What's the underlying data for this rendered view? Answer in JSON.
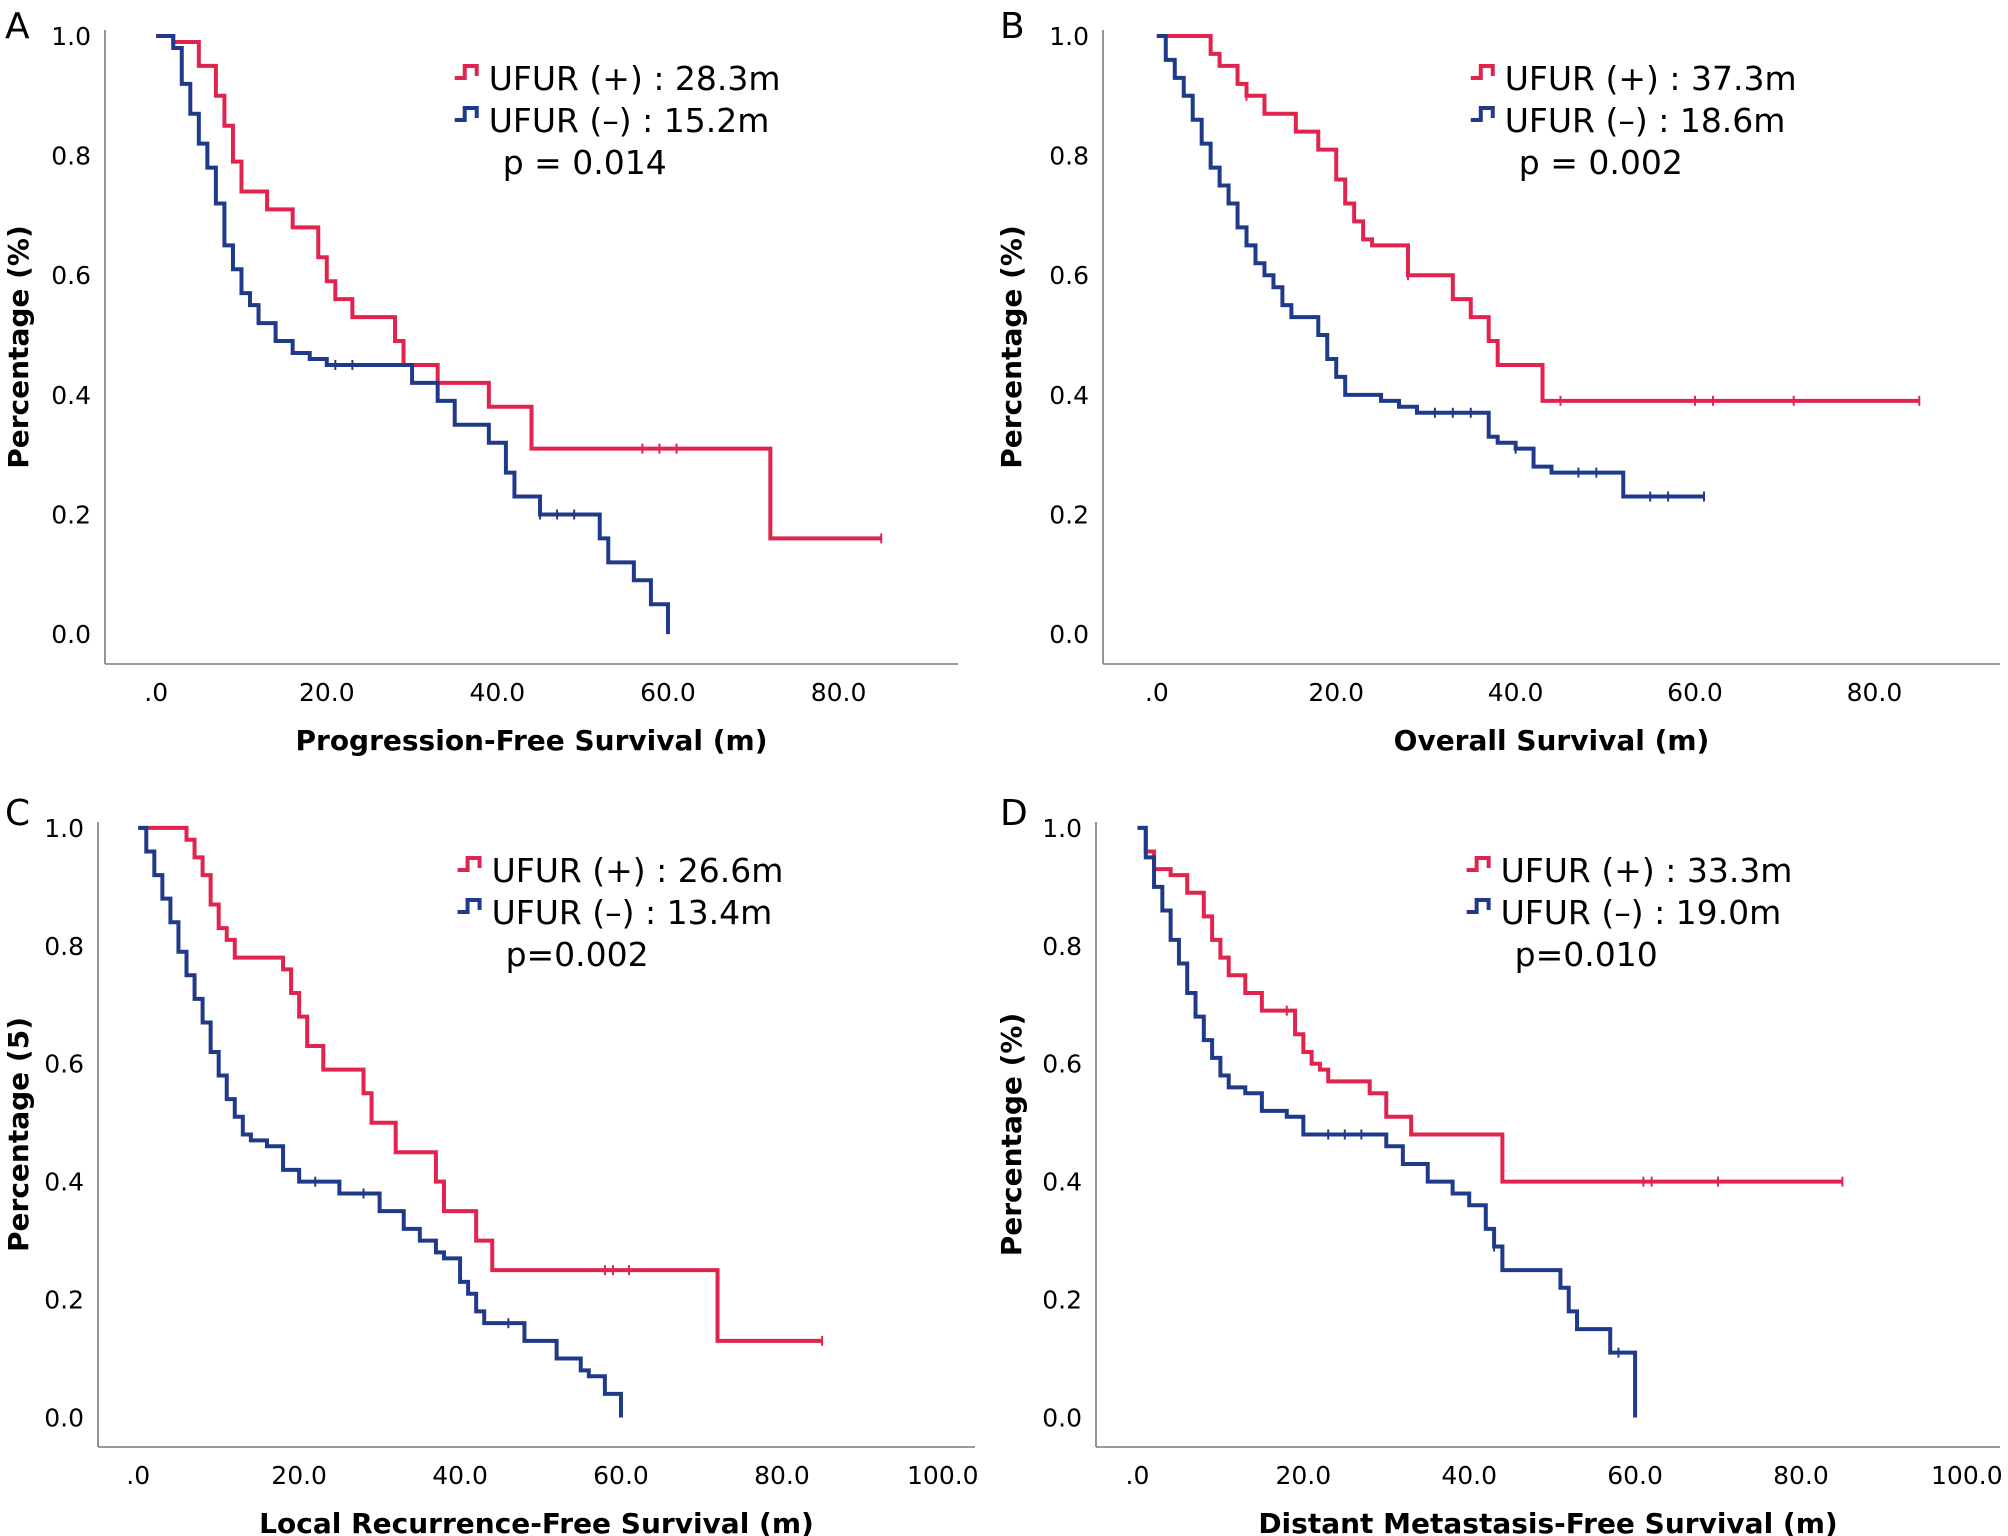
{
  "chart_data": [
    {
      "panel_label": "A",
      "type": "line",
      "subtype": "kaplan-meier",
      "xlabel": "Progression-Free Survival (m)",
      "ylabel": "Percentage (%)",
      "xticks": [
        0,
        20,
        40,
        60,
        80
      ],
      "xtick_labels": [
        ".0",
        "20.0",
        "40.0",
        "60.0",
        "80.0"
      ],
      "yticks": [
        0,
        0.2,
        0.4,
        0.6,
        0.8,
        1.0
      ],
      "ytick_labels": [
        "0.0",
        "0.2",
        "0.4",
        "0.6",
        "0.8",
        "1.0"
      ],
      "xlim": [
        -6,
        94
      ],
      "ylim": [
        -0.05,
        1.01
      ],
      "legend": {
        "position": "top-right",
        "entries": [
          "UFUR (+) : 28.3m",
          "UFUR (–) : 15.2m"
        ],
        "pvalue": "p = 0.014"
      },
      "series": [
        {
          "name": "UFUR (+)",
          "color": "#e0244e",
          "x": [
            0,
            2,
            5,
            7,
            8,
            9,
            10,
            11,
            13,
            16,
            18,
            19,
            20,
            21,
            23,
            25,
            28,
            29,
            30,
            33,
            36,
            39,
            41,
            44,
            72,
            85
          ],
          "y": [
            1.0,
            0.99,
            0.95,
            0.9,
            0.85,
            0.79,
            0.74,
            0.74,
            0.71,
            0.68,
            0.68,
            0.63,
            0.59,
            0.56,
            0.53,
            0.53,
            0.49,
            0.45,
            0.45,
            0.42,
            0.42,
            0.38,
            0.38,
            0.31,
            0.16,
            0.16
          ],
          "censor_x": [
            57,
            59,
            61,
            85
          ]
        },
        {
          "name": "UFUR (–)",
          "color": "#1f3a8a",
          "x": [
            0,
            2,
            3,
            4,
            5,
            6,
            7,
            8,
            9,
            10,
            11,
            12,
            14,
            16,
            18,
            20,
            25,
            30,
            33,
            35,
            39,
            41,
            42,
            43,
            45,
            48,
            52,
            53,
            56,
            58,
            59,
            60
          ],
          "y": [
            1.0,
            0.98,
            0.92,
            0.87,
            0.82,
            0.78,
            0.72,
            0.65,
            0.61,
            0.57,
            0.55,
            0.52,
            0.49,
            0.47,
            0.46,
            0.45,
            0.45,
            0.42,
            0.39,
            0.35,
            0.32,
            0.27,
            0.23,
            0.23,
            0.2,
            0.2,
            0.16,
            0.12,
            0.09,
            0.05,
            0.05,
            0.0
          ],
          "censor_x": [
            21,
            23,
            45,
            47,
            49
          ]
        }
      ]
    },
    {
      "panel_label": "B",
      "type": "line",
      "subtype": "kaplan-meier",
      "xlabel": "Overall Survival (m)",
      "ylabel": "Percentage (%)",
      "xticks": [
        0,
        20,
        40,
        60,
        80
      ],
      "xtick_labels": [
        ".0",
        "20.0",
        "40.0",
        "60.0",
        "80.0"
      ],
      "yticks": [
        0,
        0.2,
        0.4,
        0.6,
        0.8,
        1.0
      ],
      "ytick_labels": [
        "0.0",
        "0.2",
        "0.4",
        "0.6",
        "0.8",
        "1.0"
      ],
      "xlim": [
        -6,
        94
      ],
      "ylim": [
        -0.05,
        1.01
      ],
      "legend": {
        "position": "top-right",
        "entries": [
          "UFUR (+) : 37.3m",
          "UFUR (–) : 18.6m"
        ],
        "pvalue": "p = 0.002"
      },
      "series": [
        {
          "name": "UFUR (+)",
          "color": "#e0244e",
          "x": [
            0,
            6,
            7,
            9,
            10,
            12,
            15,
            15.5,
            18,
            20,
            21,
            22,
            23,
            24,
            26,
            28,
            31,
            33,
            35,
            37,
            38,
            40,
            43,
            85
          ],
          "y": [
            1.0,
            0.97,
            0.95,
            0.92,
            0.9,
            0.87,
            0.87,
            0.84,
            0.81,
            0.76,
            0.72,
            0.69,
            0.66,
            0.65,
            0.65,
            0.6,
            0.6,
            0.56,
            0.53,
            0.49,
            0.45,
            0.45,
            0.39,
            0.39
          ],
          "censor_x": [
            10,
            28,
            45,
            60,
            62,
            71,
            85
          ]
        },
        {
          "name": "UFUR (–)",
          "color": "#1f3a8a",
          "x": [
            0,
            1,
            2,
            3,
            4,
            5,
            6,
            7,
            8,
            9,
            10,
            11,
            12,
            13,
            14,
            15,
            16,
            18,
            19,
            20,
            21,
            23,
            25,
            27,
            29,
            36,
            37,
            38,
            40,
            42,
            44,
            52,
            61
          ],
          "y": [
            1.0,
            0.96,
            0.93,
            0.9,
            0.86,
            0.82,
            0.78,
            0.75,
            0.72,
            0.68,
            0.65,
            0.62,
            0.6,
            0.58,
            0.55,
            0.53,
            0.53,
            0.5,
            0.46,
            0.43,
            0.4,
            0.4,
            0.39,
            0.38,
            0.37,
            0.37,
            0.33,
            0.32,
            0.31,
            0.28,
            0.27,
            0.23,
            0.23
          ],
          "censor_x": [
            31,
            33,
            35,
            40,
            47,
            49,
            55,
            57,
            61
          ]
        }
      ]
    },
    {
      "panel_label": "C",
      "type": "line",
      "subtype": "kaplan-meier",
      "xlabel": "Local Recurrence-Free Survival (m)",
      "ylabel": "Percentage (5)",
      "xticks": [
        0,
        20,
        40,
        60,
        80,
        100
      ],
      "xtick_labels": [
        ".0",
        "20.0",
        "40.0",
        "60.0",
        "80.0",
        "100.0"
      ],
      "yticks": [
        0,
        0.2,
        0.4,
        0.6,
        0.8,
        1.0
      ],
      "ytick_labels": [
        "0.0",
        "0.2",
        "0.4",
        "0.6",
        "0.8",
        "1.0"
      ],
      "xlim": [
        -5,
        104
      ],
      "ylim": [
        -0.05,
        1.01
      ],
      "legend": {
        "position": "top-right",
        "entries": [
          "UFUR (+) : 26.6m",
          "UFUR (–) : 13.4m"
        ],
        "pvalue": "p=0.002"
      },
      "series": [
        {
          "name": "UFUR (+)",
          "color": "#e0244e",
          "x": [
            0,
            6,
            7,
            8,
            9,
            10,
            11,
            12,
            15,
            18,
            19,
            20,
            21,
            23,
            27,
            28,
            29,
            30,
            32,
            35,
            37,
            38,
            40,
            42,
            44,
            72,
            85
          ],
          "y": [
            1.0,
            0.98,
            0.95,
            0.92,
            0.87,
            0.83,
            0.81,
            0.78,
            0.78,
            0.76,
            0.72,
            0.68,
            0.63,
            0.59,
            0.59,
            0.55,
            0.5,
            0.5,
            0.45,
            0.45,
            0.4,
            0.35,
            0.35,
            0.3,
            0.25,
            0.13,
            0.13
          ],
          "censor_x": [
            58,
            59,
            61,
            85
          ]
        },
        {
          "name": "UFUR (–)",
          "color": "#1f3a8a",
          "x": [
            0,
            1,
            2,
            3,
            4,
            5,
            6,
            7,
            8,
            9,
            10,
            11,
            12,
            13,
            14,
            16,
            18,
            20,
            25,
            30,
            33,
            35,
            37,
            38,
            40,
            41,
            42,
            43,
            44,
            48,
            52,
            55,
            56,
            58,
            59,
            60
          ],
          "y": [
            1.0,
            0.96,
            0.92,
            0.88,
            0.84,
            0.79,
            0.75,
            0.71,
            0.67,
            0.62,
            0.58,
            0.54,
            0.51,
            0.48,
            0.47,
            0.46,
            0.42,
            0.4,
            0.38,
            0.35,
            0.32,
            0.3,
            0.28,
            0.27,
            0.23,
            0.21,
            0.18,
            0.16,
            0.16,
            0.13,
            0.1,
            0.08,
            0.07,
            0.04,
            0.04,
            0.0
          ],
          "censor_x": [
            22,
            28,
            46
          ]
        }
      ]
    },
    {
      "panel_label": "D",
      "type": "line",
      "subtype": "kaplan-meier",
      "xlabel": "Distant Metastasis-Free Survival (m)",
      "ylabel": "Percentage (%)",
      "xticks": [
        0,
        20,
        40,
        60,
        80,
        100
      ],
      "xtick_labels": [
        ".0",
        "20.0",
        "40.0",
        "60.0",
        "80.0",
        "100.0"
      ],
      "yticks": [
        0,
        0.2,
        0.4,
        0.6,
        0.8,
        1.0
      ],
      "ytick_labels": [
        "0.0",
        "0.2",
        "0.4",
        "0.6",
        "0.8",
        "1.0"
      ],
      "xlim": [
        -5,
        104
      ],
      "ylim": [
        -0.05,
        1.01
      ],
      "legend": {
        "position": "top-right",
        "entries": [
          "UFUR (+) : 33.3m",
          "UFUR (–) : 19.0m"
        ],
        "pvalue": "p=0.010"
      },
      "series": [
        {
          "name": "UFUR (+)",
          "color": "#e0244e",
          "x": [
            0,
            1,
            2,
            4,
            6,
            7,
            8,
            9,
            10,
            11,
            13,
            15,
            18,
            19,
            20,
            21,
            22,
            23,
            26,
            28,
            30,
            33,
            38,
            44,
            85
          ],
          "y": [
            1.0,
            0.96,
            0.93,
            0.92,
            0.89,
            0.89,
            0.85,
            0.81,
            0.78,
            0.75,
            0.72,
            0.69,
            0.69,
            0.65,
            0.62,
            0.6,
            0.59,
            0.57,
            0.57,
            0.55,
            0.51,
            0.48,
            0.48,
            0.4,
            0.4
          ],
          "censor_x": [
            18,
            61,
            62,
            70,
            85
          ]
        },
        {
          "name": "UFUR (–)",
          "color": "#1f3a8a",
          "x": [
            0,
            1,
            2,
            3,
            4,
            5,
            6,
            7,
            8,
            9,
            10,
            11,
            13,
            15,
            18,
            20,
            28,
            30,
            32,
            35,
            38,
            40,
            42,
            43,
            44,
            48,
            51,
            52,
            53,
            55,
            57,
            60
          ],
          "y": [
            1.0,
            0.95,
            0.9,
            0.86,
            0.81,
            0.77,
            0.72,
            0.68,
            0.64,
            0.61,
            0.58,
            0.56,
            0.55,
            0.52,
            0.51,
            0.48,
            0.48,
            0.46,
            0.43,
            0.4,
            0.38,
            0.36,
            0.32,
            0.29,
            0.25,
            0.25,
            0.22,
            0.18,
            0.15,
            0.15,
            0.11,
            0.0
          ],
          "censor_x": [
            23,
            25,
            27,
            43,
            58
          ]
        }
      ]
    }
  ]
}
